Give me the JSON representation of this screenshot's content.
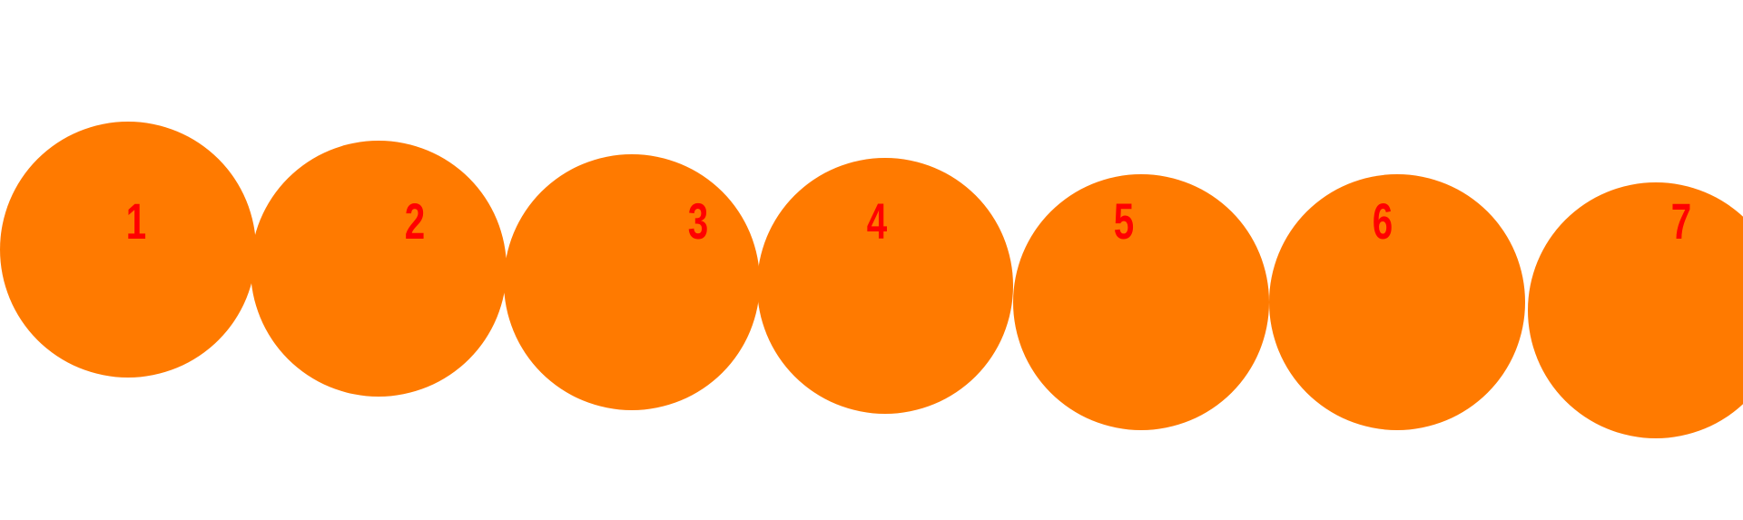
{
  "colors": {
    "background": "#ffffff",
    "circle_fill": "#ff7a00",
    "label": "#ff0000"
  },
  "circles": [
    {
      "label": "1"
    },
    {
      "label": "2"
    },
    {
      "label": "3"
    },
    {
      "label": "4"
    },
    {
      "label": "5"
    },
    {
      "label": "6"
    },
    {
      "label": "7"
    }
  ]
}
